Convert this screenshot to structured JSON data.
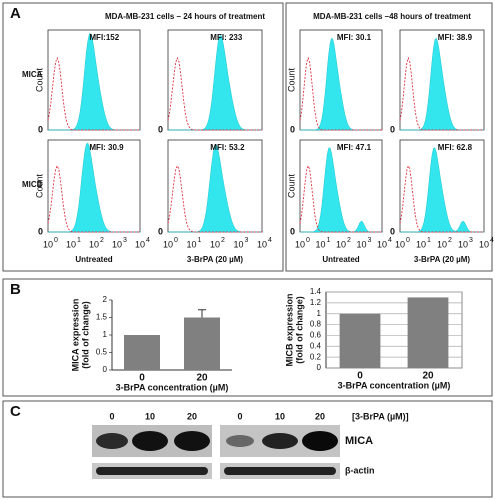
{
  "panels": {
    "A": {
      "label": "A",
      "groups": [
        {
          "title": "MDA-MB-231 cells – 24 hours of treatment",
          "x_labels": [
            "Untreated",
            "3-BrPA (20 µM)"
          ]
        },
        {
          "title": "MDA-MB-231 cells –48 hours of treatment",
          "x_labels": [
            "Untreated",
            "3-BrPA (20 µM)"
          ]
        }
      ],
      "rows": [
        "MICA",
        "MICB"
      ],
      "y_label": "Count",
      "y_zero": "0",
      "mfi": [
        [
          "MFI:152",
          "MFI: 233",
          "MFI: 30.1",
          "MFI: 38.9"
        ],
        [
          "MFI: 30.9",
          "MFI: 53.2",
          "MFI: 47.1",
          "MFI: 62.8"
        ]
      ],
      "tick_base": "10",
      "tick_exponents": [
        "0",
        "1",
        "2",
        "3",
        "4"
      ]
    },
    "B": {
      "label": "B"
    },
    "C": {
      "label": "C",
      "lanes": [
        "0",
        "10",
        "20",
        "0",
        "10",
        "20"
      ],
      "treatment": "[3-BrPA (µM)]",
      "bands": [
        "MICA",
        "β-actin"
      ]
    }
  },
  "chart_data": [
    {
      "type": "bar",
      "ylabel": [
        "MICA expression",
        "(fold of change)"
      ],
      "xlabel": "3-BrPA concentration (µM)",
      "categories": [
        "0",
        "20"
      ],
      "values": [
        1,
        1.5
      ],
      "errors": [
        null,
        0.22
      ],
      "color": "#808080",
      "ylim": [
        0,
        2
      ],
      "yticks": [
        0,
        0.5,
        1,
        1.5,
        2
      ],
      "frame": false
    },
    {
      "type": "bar",
      "ylabel": [
        "MICB expression",
        "(fold of change)"
      ],
      "xlabel": "3-BrPA concentration (µM)",
      "categories": [
        "0",
        "20"
      ],
      "values": [
        1,
        1.3
      ],
      "errors": [
        null,
        null
      ],
      "color": "#808080",
      "ylim": [
        0,
        1.4
      ],
      "yticks": [
        0,
        0.2,
        0.4,
        0.6,
        0.8,
        1,
        1.2,
        1.4
      ],
      "frame": true
    }
  ]
}
